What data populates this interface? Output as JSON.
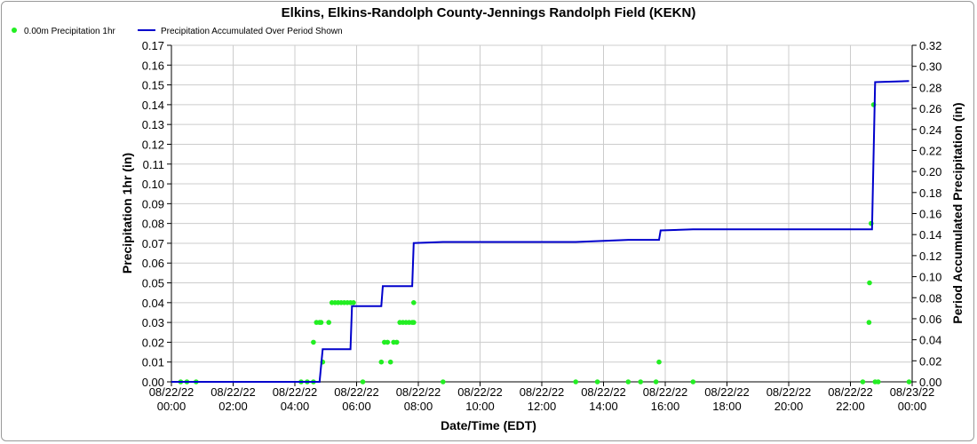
{
  "chart_data": {
    "type": "line",
    "title": "Elkins, Elkins-Randolph County-Jennings Randolph Field (KEKN)",
    "xlabel": "Date/Time (EDT)",
    "ylabel_left": "Precipitation 1hr (in)",
    "ylabel_right": "Period Accumulated Precipitation (in)",
    "legend_position": "top-left",
    "grid": true,
    "x_range_hours": [
      0,
      24
    ],
    "ylim_left": [
      0,
      0.17
    ],
    "ylim_right": [
      0,
      0.32
    ],
    "x_ticks": [
      {
        "hour": 0,
        "date": "08/22/22",
        "time": "00:00"
      },
      {
        "hour": 2,
        "date": "08/22/22",
        "time": "02:00"
      },
      {
        "hour": 4,
        "date": "08/22/22",
        "time": "04:00"
      },
      {
        "hour": 6,
        "date": "08/22/22",
        "time": "06:00"
      },
      {
        "hour": 8,
        "date": "08/22/22",
        "time": "08:00"
      },
      {
        "hour": 10,
        "date": "08/22/22",
        "time": "10:00"
      },
      {
        "hour": 12,
        "date": "08/22/22",
        "time": "12:00"
      },
      {
        "hour": 14,
        "date": "08/22/22",
        "time": "14:00"
      },
      {
        "hour": 16,
        "date": "08/22/22",
        "time": "16:00"
      },
      {
        "hour": 18,
        "date": "08/22/22",
        "time": "18:00"
      },
      {
        "hour": 20,
        "date": "08/22/22",
        "time": "20:00"
      },
      {
        "hour": 22,
        "date": "08/22/22",
        "time": "22:00"
      },
      {
        "hour": 24,
        "date": "08/23/22",
        "time": "00:00"
      }
    ],
    "y_ticks_left": [
      "0.00",
      "0.01",
      "0.02",
      "0.03",
      "0.04",
      "0.05",
      "0.06",
      "0.07",
      "0.08",
      "0.09",
      "0.10",
      "0.11",
      "0.12",
      "0.13",
      "0.14",
      "0.15",
      "0.16",
      "0.17"
    ],
    "y_ticks_right": [
      "0.00",
      "0.02",
      "0.04",
      "0.06",
      "0.08",
      "0.10",
      "0.12",
      "0.14",
      "0.16",
      "0.18",
      "0.20",
      "0.22",
      "0.24",
      "0.26",
      "0.28",
      "0.30",
      "0.32"
    ],
    "series": [
      {
        "name": "0.00m Precipitation 1hr",
        "type": "scatter",
        "axis": "left",
        "color": "#22ee22",
        "points": [
          {
            "x": 0.3,
            "y": 0.0
          },
          {
            "x": 0.5,
            "y": 0.0
          },
          {
            "x": 0.8,
            "y": 0.0
          },
          {
            "x": 4.2,
            "y": 0.0
          },
          {
            "x": 4.4,
            "y": 0.0
          },
          {
            "x": 4.6,
            "y": 0.0
          },
          {
            "x": 4.6,
            "y": 0.02
          },
          {
            "x": 4.7,
            "y": 0.03
          },
          {
            "x": 4.8,
            "y": 0.03
          },
          {
            "x": 4.85,
            "y": 0.03
          },
          {
            "x": 4.9,
            "y": 0.01
          },
          {
            "x": 5.1,
            "y": 0.03
          },
          {
            "x": 5.2,
            "y": 0.04
          },
          {
            "x": 5.3,
            "y": 0.04
          },
          {
            "x": 5.4,
            "y": 0.04
          },
          {
            "x": 5.5,
            "y": 0.04
          },
          {
            "x": 5.6,
            "y": 0.04
          },
          {
            "x": 5.7,
            "y": 0.04
          },
          {
            "x": 5.8,
            "y": 0.04
          },
          {
            "x": 5.9,
            "y": 0.04
          },
          {
            "x": 6.2,
            "y": 0.0
          },
          {
            "x": 6.8,
            "y": 0.01
          },
          {
            "x": 6.9,
            "y": 0.02
          },
          {
            "x": 7.0,
            "y": 0.02
          },
          {
            "x": 7.1,
            "y": 0.01
          },
          {
            "x": 7.2,
            "y": 0.02
          },
          {
            "x": 7.3,
            "y": 0.02
          },
          {
            "x": 7.4,
            "y": 0.03
          },
          {
            "x": 7.5,
            "y": 0.03
          },
          {
            "x": 7.6,
            "y": 0.03
          },
          {
            "x": 7.7,
            "y": 0.03
          },
          {
            "x": 7.8,
            "y": 0.03
          },
          {
            "x": 7.85,
            "y": 0.03
          },
          {
            "x": 7.85,
            "y": 0.04
          },
          {
            "x": 8.8,
            "y": 0.0
          },
          {
            "x": 13.1,
            "y": 0.0
          },
          {
            "x": 13.8,
            "y": 0.0
          },
          {
            "x": 14.8,
            "y": 0.0
          },
          {
            "x": 15.2,
            "y": 0.0
          },
          {
            "x": 15.7,
            "y": 0.0
          },
          {
            "x": 15.8,
            "y": 0.01
          },
          {
            "x": 16.9,
            "y": 0.0
          },
          {
            "x": 22.4,
            "y": 0.0
          },
          {
            "x": 22.6,
            "y": 0.03
          },
          {
            "x": 22.62,
            "y": 0.05
          },
          {
            "x": 22.67,
            "y": 0.08
          },
          {
            "x": 22.75,
            "y": 0.14
          },
          {
            "x": 22.8,
            "y": 0.0
          },
          {
            "x": 22.9,
            "y": 0.0
          },
          {
            "x": 23.9,
            "y": 0.0
          }
        ]
      },
      {
        "name": "Precipitation Accumulated Over Period Shown",
        "type": "line",
        "axis": "right",
        "color": "#0000cc",
        "points": [
          {
            "x": 0.0,
            "y": 0.0
          },
          {
            "x": 4.8,
            "y": 0.0
          },
          {
            "x": 4.9,
            "y": 0.031
          },
          {
            "x": 5.8,
            "y": 0.031
          },
          {
            "x": 5.85,
            "y": 0.072
          },
          {
            "x": 6.8,
            "y": 0.072
          },
          {
            "x": 6.85,
            "y": 0.091
          },
          {
            "x": 7.8,
            "y": 0.091
          },
          {
            "x": 7.85,
            "y": 0.132
          },
          {
            "x": 8.8,
            "y": 0.133
          },
          {
            "x": 13.1,
            "y": 0.133
          },
          {
            "x": 14.8,
            "y": 0.135
          },
          {
            "x": 15.8,
            "y": 0.135
          },
          {
            "x": 15.85,
            "y": 0.144
          },
          {
            "x": 16.9,
            "y": 0.145
          },
          {
            "x": 22.7,
            "y": 0.145
          },
          {
            "x": 22.8,
            "y": 0.285
          },
          {
            "x": 23.9,
            "y": 0.286
          }
        ]
      }
    ]
  }
}
